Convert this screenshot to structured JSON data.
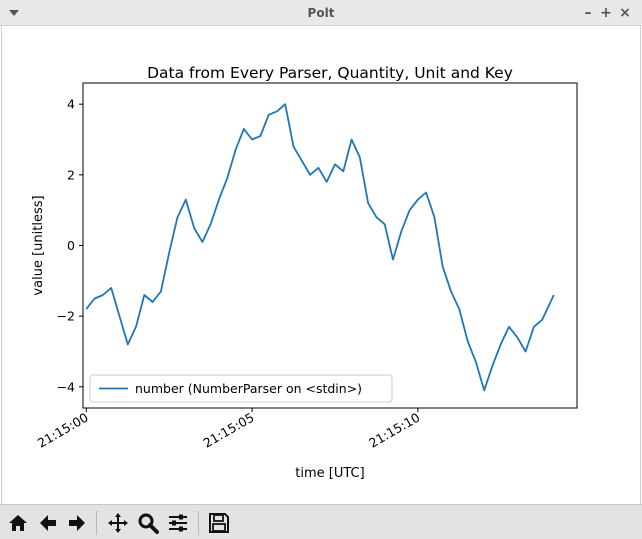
{
  "window": {
    "title": "Polt"
  },
  "toolbar": {
    "buttons": [
      {
        "name": "home-icon"
      },
      {
        "name": "back-icon"
      },
      {
        "name": "forward-icon"
      },
      {
        "name": "pan-icon"
      },
      {
        "name": "zoom-icon"
      },
      {
        "name": "configure-subplots-icon"
      },
      {
        "name": "save-icon"
      }
    ]
  },
  "chart_data": {
    "type": "line",
    "title": "Data from Every Parser, Quantity, Unit and Key",
    "xlabel": "time [UTC]",
    "ylabel": "value [unitless]",
    "x_ticks": [
      "21:15:00",
      "21:15:05",
      "21:15:10"
    ],
    "y_ticks": [
      "−4",
      "−2",
      "0",
      "2",
      "4"
    ],
    "xlim": [
      -0.1,
      14.8
    ],
    "ylim": [
      -4.6,
      4.6
    ],
    "legend_position": "lower-left",
    "series": [
      {
        "name": "number (NumberParser on <stdin>)",
        "color": "#1f77b4",
        "x": [
          0.0,
          0.25,
          0.5,
          0.75,
          1.0,
          1.25,
          1.5,
          1.75,
          2.0,
          2.25,
          2.5,
          2.75,
          3.0,
          3.25,
          3.5,
          3.75,
          4.0,
          4.25,
          4.5,
          4.75,
          5.0,
          5.25,
          5.5,
          5.75,
          6.0,
          6.25,
          6.5,
          6.75,
          7.0,
          7.25,
          7.5,
          7.75,
          8.0,
          8.25,
          8.5,
          8.75,
          9.0,
          9.25,
          9.5,
          9.75,
          10.0,
          10.25,
          10.5,
          10.75,
          11.0,
          11.25,
          11.5,
          11.75,
          12.0,
          12.25,
          12.5,
          12.75,
          13.0,
          13.25,
          13.5,
          13.75,
          14.0,
          14.1
        ],
        "y": [
          -1.8,
          -1.5,
          -1.4,
          -1.2,
          -2.0,
          -2.8,
          -2.3,
          -1.4,
          -1.6,
          -1.3,
          -0.2,
          0.8,
          1.3,
          0.5,
          0.1,
          0.6,
          1.3,
          1.9,
          2.7,
          3.3,
          3.0,
          3.1,
          3.7,
          3.8,
          4.0,
          2.8,
          2.4,
          2.0,
          2.2,
          1.8,
          2.3,
          2.1,
          3.0,
          2.5,
          1.2,
          0.8,
          0.6,
          -0.4,
          0.4,
          1.0,
          1.3,
          1.5,
          0.8,
          -0.6,
          -1.3,
          -1.8,
          -2.7,
          -3.3,
          -4.1,
          -3.4,
          -2.8,
          -2.3,
          -2.6,
          -3.0,
          -2.3,
          -2.1,
          -1.6,
          -1.4
        ]
      }
    ]
  }
}
